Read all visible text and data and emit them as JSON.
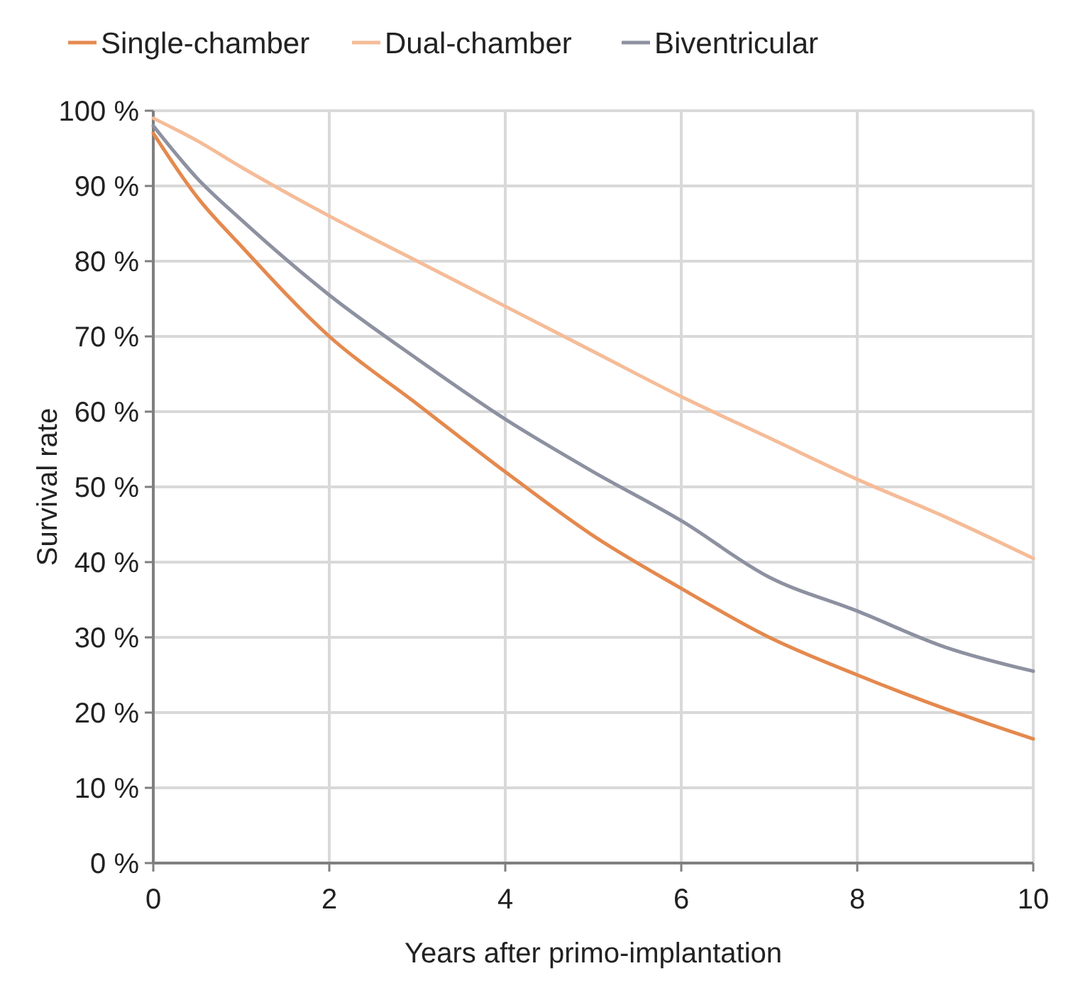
{
  "chart_data": {
    "type": "line",
    "xlabel": "Years after primo-implantation",
    "ylabel": "Survival rate",
    "x": [
      0,
      0.5,
      1,
      2,
      3,
      4,
      5,
      6,
      7,
      8,
      9,
      10
    ],
    "series": [
      {
        "name": "Single-chamber",
        "color": "#e4894e",
        "values": [
          97,
          88.5,
          82,
          70,
          61,
          52,
          43.5,
          36.5,
          30,
          25,
          20.5,
          16.5
        ]
      },
      {
        "name": "Dual-chamber",
        "color": "#f5bc98",
        "values": [
          99,
          96,
          92.5,
          86,
          80,
          74,
          68,
          62,
          56.5,
          51,
          46,
          40.5
        ]
      },
      {
        "name": "Biventricular",
        "color": "#8d91a0",
        "values": [
          98,
          91,
          85.5,
          75.5,
          67,
          59,
          52,
          45.5,
          38,
          33.5,
          28.7,
          25.5
        ]
      }
    ],
    "xlim": [
      0,
      10
    ],
    "xticks": [
      0,
      2,
      4,
      6,
      8,
      10
    ],
    "ylim": [
      0,
      100
    ],
    "yticks": [
      {
        "value": 0,
        "label": "0 %"
      },
      {
        "value": 10,
        "label": "10 %"
      },
      {
        "value": 20,
        "label": "20 %"
      },
      {
        "value": 30,
        "label": "30 %"
      },
      {
        "value": 40,
        "label": "40 %"
      },
      {
        "value": 50,
        "label": "50 %"
      },
      {
        "value": 60,
        "label": "60 %"
      },
      {
        "value": 70,
        "label": "70 %"
      },
      {
        "value": 80,
        "label": "80 %"
      },
      {
        "value": 90,
        "label": "90 %"
      },
      {
        "value": 100,
        "label": "100 %"
      }
    ],
    "grid": true,
    "legend": "top",
    "marker": "none",
    "line_style": "solid"
  }
}
